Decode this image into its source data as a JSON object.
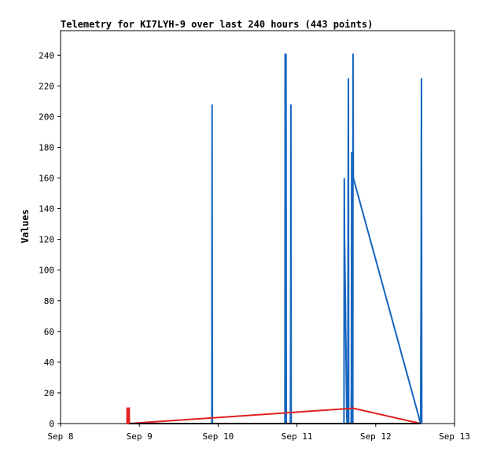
{
  "chart_data": {
    "type": "line",
    "title": "Telemetry for KI7LYH-9 over last 240 hours (443 points)",
    "xlabel": "",
    "ylabel": "Values",
    "x_range": [
      "2024-09-08T00:00",
      "2024-09-13T00:00"
    ],
    "ylim": [
      0,
      256
    ],
    "x_ticks": [
      {
        "label": "Sep 8",
        "t": "2024-09-08T00:00"
      },
      {
        "label": "Sep 9",
        "t": "2024-09-09T00:00"
      },
      {
        "label": "Sep 10",
        "t": "2024-09-10T00:00"
      },
      {
        "label": "Sep 11",
        "t": "2024-09-11T00:00"
      },
      {
        "label": "Sep 12",
        "t": "2024-09-12T00:00"
      },
      {
        "label": "Sep 13",
        "t": "2024-09-13T00:00"
      }
    ],
    "y_ticks": [
      0,
      20,
      40,
      60,
      80,
      100,
      120,
      140,
      160,
      180,
      200,
      220,
      240
    ],
    "grid": false,
    "legend": "none",
    "series": [
      {
        "color": "#1565c0",
        "points": [
          [
            "2024-09-08T21:00",
            0
          ],
          [
            "2024-09-09T22:05",
            0
          ],
          [
            "2024-09-09T22:10",
            208
          ],
          [
            "2024-09-09T22:15",
            0
          ],
          [
            "2024-09-10T20:20",
            0
          ],
          [
            "2024-09-10T20:25",
            241
          ],
          [
            "2024-09-10T20:30",
            0
          ],
          [
            "2024-09-10T20:40",
            241
          ],
          [
            "2024-09-10T20:45",
            0
          ],
          [
            "2024-09-10T22:00",
            0
          ],
          [
            "2024-09-10T22:05",
            56
          ],
          [
            "2024-09-10T22:10",
            208
          ],
          [
            "2024-09-10T22:15",
            0
          ],
          [
            "2024-09-11T14:20",
            0
          ],
          [
            "2024-09-11T14:25",
            160
          ],
          [
            "2024-09-11T14:30",
            121
          ],
          [
            "2024-09-11T14:35",
            106
          ],
          [
            "2024-09-11T14:40",
            93
          ],
          [
            "2024-09-11T14:45",
            78
          ],
          [
            "2024-09-11T14:50",
            64
          ],
          [
            "2024-09-11T14:55",
            50
          ],
          [
            "2024-09-11T15:00",
            36
          ],
          [
            "2024-09-11T15:05",
            20
          ],
          [
            "2024-09-11T15:10",
            8
          ],
          [
            "2024-09-11T15:15",
            0
          ],
          [
            "2024-09-11T15:30",
            0
          ],
          [
            "2024-09-11T15:35",
            145
          ],
          [
            "2024-09-11T15:40",
            225
          ],
          [
            "2024-09-11T15:45",
            0
          ],
          [
            "2024-09-11T16:30",
            0
          ],
          [
            "2024-09-11T16:35",
            25
          ],
          [
            "2024-09-11T16:40",
            177
          ],
          [
            "2024-09-11T16:45",
            0
          ],
          [
            "2024-09-11T17:00",
            0
          ],
          [
            "2024-09-11T17:05",
            241
          ],
          [
            "2024-09-11T17:10",
            160
          ],
          [
            "2024-09-12T13:40",
            0
          ],
          [
            "2024-09-12T13:50",
            113
          ],
          [
            "2024-09-12T13:55",
            225
          ],
          [
            "2024-09-12T14:00",
            0
          ]
        ]
      },
      {
        "color": "#e02020",
        "points": [
          [
            "2024-09-08T20:15",
            0
          ],
          [
            "2024-09-08T20:16",
            10
          ],
          [
            "2024-09-08T20:20",
            10
          ],
          [
            "2024-09-08T20:21",
            0
          ],
          [
            "2024-09-08T20:50",
            0
          ],
          [
            "2024-09-08T20:51",
            10
          ],
          [
            "2024-09-08T20:55",
            10
          ],
          [
            "2024-09-08T20:56",
            0
          ],
          [
            "2024-09-11T17:10",
            10
          ],
          [
            "2024-09-12T13:40",
            0
          ]
        ]
      },
      {
        "color": "#000000",
        "points": [
          [
            "2024-09-08T21:00",
            0
          ],
          [
            "2024-09-12T13:40",
            0
          ]
        ]
      }
    ]
  }
}
